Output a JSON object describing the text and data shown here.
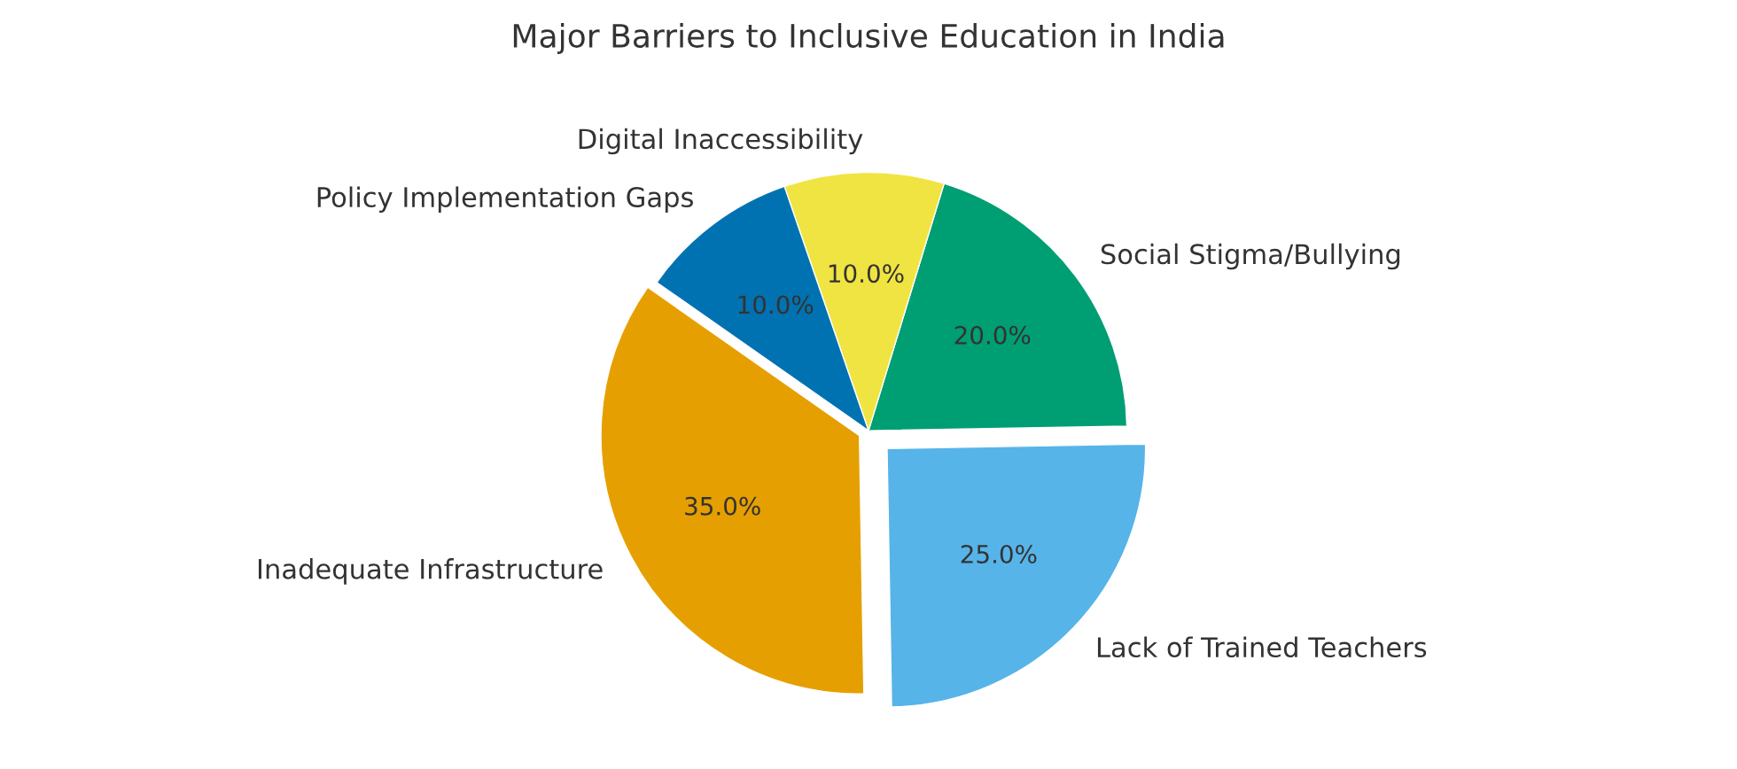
{
  "chart_data": {
    "type": "pie",
    "title": "Major Barriers to Inclusive Education in India",
    "categories": [
      "Inadequate Infrastructure",
      "Lack of Trained Teachers",
      "Social Stigma/Bullying",
      "Digital Inaccessibility",
      "Policy Implementation Gaps"
    ],
    "values": [
      35,
      25,
      20,
      10,
      10
    ],
    "value_labels": [
      "35.0%",
      "25.0%",
      "20.0%",
      "10.0%",
      "10.0%"
    ],
    "colors": [
      "#e69f00",
      "#56b4e9",
      "#009e73",
      "#f0e442",
      "#0072b2"
    ]
  }
}
